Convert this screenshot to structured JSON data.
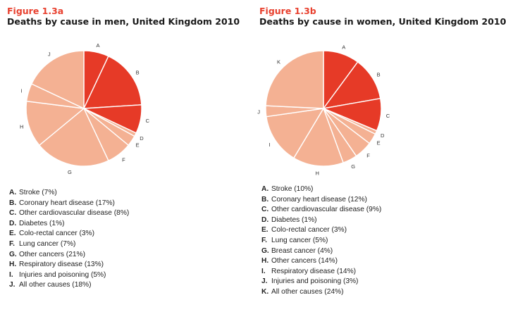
{
  "colors": {
    "accent": "#e8412f",
    "dark": "#e63a27",
    "light": "#f4b193",
    "stroke": "#ffffff"
  },
  "chart_data": [
    {
      "type": "pie",
      "figure_label": "Figure 1.3a",
      "title": "Deaths by cause in men, United Kingdom 2010",
      "slices": [
        {
          "key": "A",
          "name": "Stroke",
          "value": 7
        },
        {
          "key": "B",
          "name": "Coronary heart disease",
          "value": 17
        },
        {
          "key": "C",
          "name": "Other cardiovascular disease",
          "value": 8
        },
        {
          "key": "D",
          "name": "Diabetes",
          "value": 1
        },
        {
          "key": "E",
          "name": "Colo-rectal cancer",
          "value": 3
        },
        {
          "key": "F",
          "name": "Lung cancer",
          "value": 7
        },
        {
          "key": "G",
          "name": "Other cancers",
          "value": 21
        },
        {
          "key": "H",
          "name": "Respiratory disease",
          "value": 13
        },
        {
          "key": "I",
          "name": "Injuries and poisoning",
          "value": 5
        },
        {
          "key": "J",
          "name": "All other causes",
          "value": 18
        }
      ],
      "legend_items": [
        "Stroke (7%)",
        "Coronary heart disease (17%)",
        "Other cardiovascular disease (8%)",
        "Diabetes (1%)",
        "Colo-rectal cancer (3%)",
        "Lung cancer (7%)",
        "Other cancers (21%)",
        "Respiratory disease (13%)",
        "Injuries and poisoning (5%)",
        "All other causes (18%)"
      ]
    },
    {
      "type": "pie",
      "figure_label": "Figure 1.3b",
      "title": "Deaths by cause in women, United Kingdom 2010",
      "slices": [
        {
          "key": "A",
          "name": "Stroke",
          "value": 10
        },
        {
          "key": "B",
          "name": "Coronary heart disease",
          "value": 12
        },
        {
          "key": "C",
          "name": "Other cardiovascular disease",
          "value": 9
        },
        {
          "key": "D",
          "name": "Diabetes",
          "value": 1
        },
        {
          "key": "E",
          "name": "Colo-rectal cancer",
          "value": 3
        },
        {
          "key": "F",
          "name": "Lung cancer",
          "value": 5
        },
        {
          "key": "G",
          "name": "Breast cancer",
          "value": 4
        },
        {
          "key": "H",
          "name": "Other cancers",
          "value": 14
        },
        {
          "key": "I",
          "name": "Respiratory disease",
          "value": 14
        },
        {
          "key": "J",
          "name": "Injuries and poisoning",
          "value": 3
        },
        {
          "key": "K",
          "name": "All other causes",
          "value": 24
        }
      ],
      "legend_items": [
        "Stroke (10%)",
        "Coronary heart disease (12%)",
        "Other cardiovascular disease (9%)",
        "Diabetes (1%)",
        "Colo-rectal cancer (3%)",
        "Lung cancer (5%)",
        "Breast cancer (4%)",
        "Other cancers (14%)",
        "Respiratory disease (14%)",
        "Injuries and poisoning (3%)",
        "All other causes (24%)"
      ]
    }
  ]
}
